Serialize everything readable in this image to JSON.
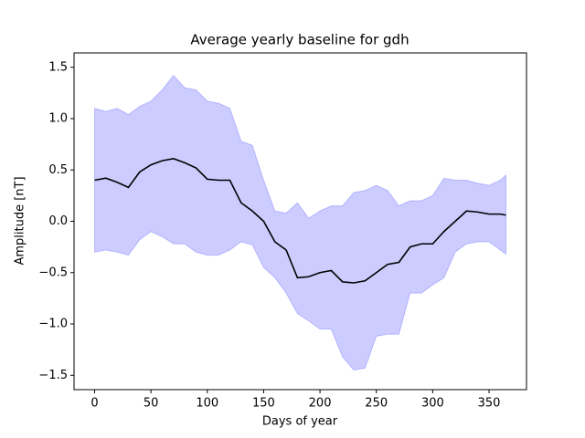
{
  "chart_data": {
    "type": "line",
    "title": "Average yearly baseline for gdh",
    "xlabel": "Days of year",
    "ylabel": "Amplitude [nT]",
    "x": [
      0,
      10,
      20,
      30,
      40,
      50,
      60,
      70,
      80,
      90,
      100,
      110,
      120,
      130,
      140,
      150,
      160,
      170,
      180,
      190,
      200,
      210,
      220,
      230,
      240,
      250,
      260,
      270,
      280,
      290,
      300,
      310,
      320,
      330,
      340,
      350,
      360,
      365
    ],
    "line": {
      "color": "#000000",
      "values": [
        0.4,
        0.42,
        0.38,
        0.33,
        0.48,
        0.55,
        0.59,
        0.61,
        0.57,
        0.52,
        0.41,
        0.4,
        0.4,
        0.18,
        0.1,
        0.0,
        -0.2,
        -0.28,
        -0.55,
        -0.54,
        -0.5,
        -0.48,
        -0.59,
        -0.6,
        -0.58,
        -0.5,
        -0.42,
        -0.4,
        -0.25,
        -0.22,
        -0.22,
        -0.1,
        0.0,
        0.1,
        0.09,
        0.07,
        0.07,
        0.06
      ]
    },
    "band": {
      "color": "#0000ff",
      "alpha": 0.2,
      "upper": [
        1.1,
        1.07,
        1.1,
        1.04,
        1.12,
        1.17,
        1.28,
        1.42,
        1.3,
        1.28,
        1.17,
        1.15,
        1.1,
        0.78,
        0.74,
        0.4,
        0.1,
        0.08,
        0.18,
        0.03,
        0.1,
        0.15,
        0.15,
        0.28,
        0.3,
        0.35,
        0.3,
        0.15,
        0.2,
        0.2,
        0.25,
        0.42,
        0.4,
        0.4,
        0.37,
        0.35,
        0.4,
        0.45
      ],
      "lower": [
        -0.3,
        -0.28,
        -0.3,
        -0.33,
        -0.18,
        -0.1,
        -0.15,
        -0.22,
        -0.22,
        -0.3,
        -0.33,
        -0.33,
        -0.28,
        -0.2,
        -0.23,
        -0.45,
        -0.55,
        -0.7,
        -0.9,
        -0.97,
        -1.05,
        -1.05,
        -1.32,
        -1.45,
        -1.43,
        -1.12,
        -1.1,
        -1.1,
        -0.7,
        -0.7,
        -0.62,
        -0.55,
        -0.3,
        -0.22,
        -0.2,
        -0.2,
        -0.28,
        -0.32
      ]
    },
    "xlim": [
      -18.25,
      383.25
    ],
    "ylim": [
      -1.64,
      1.64
    ],
    "xticks": [
      0,
      50,
      100,
      150,
      200,
      250,
      300,
      350
    ],
    "yticks": [
      {
        "value": -1.5,
        "label": "−1.5"
      },
      {
        "value": -1.0,
        "label": "−1.0"
      },
      {
        "value": -0.5,
        "label": "−0.5"
      },
      {
        "value": 0.0,
        "label": "0.0"
      },
      0.5,
      {
        "value": 1.0,
        "label": "1.0"
      },
      1.5
    ]
  }
}
